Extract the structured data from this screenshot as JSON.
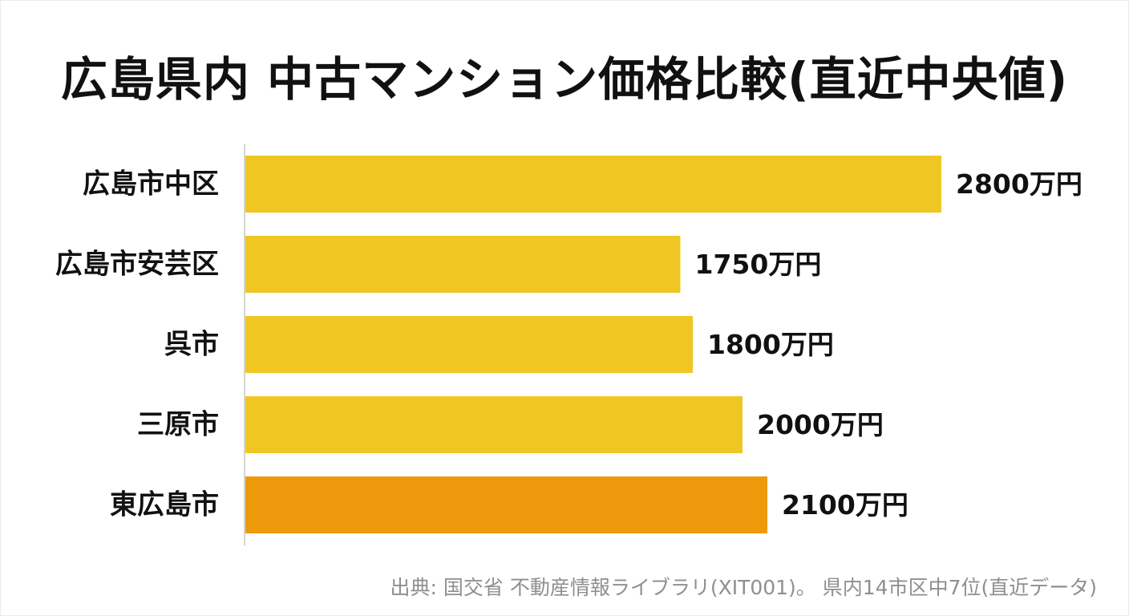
{
  "title": "広島県内 中古マンション価格比較(直近中央値)",
  "source": "出典: 国交省 不動産情報ライブラリ(XIT001)。 県内14市区中7位(直近データ)",
  "colors": {
    "bar": "#F0C722",
    "highlight": "#EC9A0C",
    "axis": "#d4d4d4",
    "text": "#111111"
  },
  "chart_data": {
    "type": "bar",
    "orientation": "horizontal",
    "title": "広島県内 中古マンション価格比較(直近中央値)",
    "categories": [
      "広島市中区",
      "広島市安芸区",
      "呉市",
      "三原市",
      "東広島市"
    ],
    "values": [
      2800,
      1750,
      1800,
      2000,
      2100
    ],
    "value_labels": [
      "2800万円",
      "1750万円",
      "1800万円",
      "2000万円",
      "2100万円"
    ],
    "unit": "万円",
    "highlight_category": "東広島市",
    "xlabel": "",
    "ylabel": "",
    "xlim": [
      0,
      2800
    ],
    "grid": false,
    "legend": "none"
  }
}
